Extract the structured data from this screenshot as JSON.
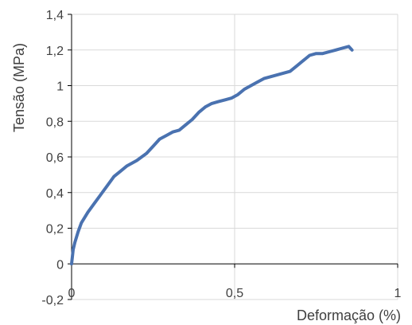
{
  "chart_data": {
    "type": "line",
    "xlabel": "Deformação (%)",
    "ylabel": "Tensão (MPa)",
    "xlim": [
      0,
      1
    ],
    "ylim": [
      -0.2,
      1.4
    ],
    "x_ticks": [
      "0",
      "0,5",
      "1"
    ],
    "y_ticks": [
      "-0,2",
      "0",
      "0,2",
      "0,4",
      "0,6",
      "0,8",
      "1",
      "1,2",
      "1,4"
    ],
    "grid": true,
    "legend": "none",
    "series": [
      {
        "color": "#4a72b0",
        "x": [
          0,
          0.005,
          0.01,
          0.02,
          0.03,
          0.05,
          0.07,
          0.09,
          0.11,
          0.13,
          0.15,
          0.17,
          0.2,
          0.23,
          0.25,
          0.27,
          0.29,
          0.31,
          0.33,
          0.35,
          0.37,
          0.39,
          0.41,
          0.43,
          0.45,
          0.47,
          0.49,
          0.51,
          0.53,
          0.55,
          0.57,
          0.59,
          0.61,
          0.63,
          0.65,
          0.67,
          0.69,
          0.71,
          0.73,
          0.75,
          0.77,
          0.79,
          0.81,
          0.83,
          0.85,
          0.86
        ],
        "y": [
          0,
          0.08,
          0.12,
          0.18,
          0.23,
          0.29,
          0.34,
          0.39,
          0.44,
          0.49,
          0.52,
          0.55,
          0.58,
          0.62,
          0.66,
          0.7,
          0.72,
          0.74,
          0.75,
          0.78,
          0.81,
          0.85,
          0.88,
          0.9,
          0.91,
          0.92,
          0.93,
          0.95,
          0.98,
          1.0,
          1.02,
          1.04,
          1.05,
          1.06,
          1.07,
          1.08,
          1.11,
          1.14,
          1.17,
          1.18,
          1.18,
          1.19,
          1.2,
          1.21,
          1.22,
          1.2
        ]
      }
    ]
  }
}
